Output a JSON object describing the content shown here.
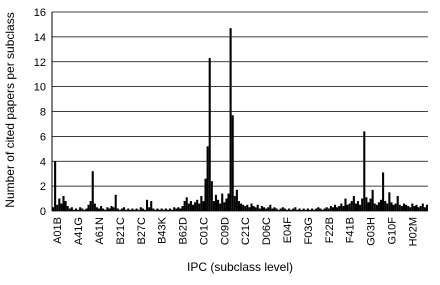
{
  "chart_data": {
    "type": "bar",
    "x_label": "IPC (subclass level)",
    "y_label": "Number of cited papers per subclass",
    "color": "#000000",
    "grid": true,
    "ylim": [
      0,
      16
    ],
    "yticks": [
      0,
      2,
      4,
      6,
      8,
      10,
      12,
      14,
      16
    ],
    "categories": [
      null,
      null,
      "A01B",
      null,
      null,
      null,
      null,
      null,
      null,
      null,
      null,
      null,
      "A41G",
      null,
      null,
      null,
      null,
      null,
      null,
      null,
      null,
      null,
      "A61N",
      null,
      null,
      null,
      null,
      null,
      null,
      null,
      null,
      null,
      "B21C",
      null,
      null,
      null,
      null,
      null,
      null,
      null,
      null,
      null,
      "B27C",
      null,
      null,
      null,
      null,
      null,
      null,
      null,
      null,
      null,
      "B43K",
      null,
      null,
      null,
      null,
      null,
      null,
      null,
      null,
      null,
      "B62D",
      null,
      null,
      null,
      null,
      null,
      null,
      null,
      null,
      null,
      "C01C",
      null,
      null,
      null,
      null,
      null,
      null,
      null,
      null,
      null,
      "C09D",
      null,
      null,
      null,
      null,
      null,
      null,
      null,
      null,
      null,
      "C21C",
      null,
      null,
      null,
      null,
      null,
      null,
      null,
      null,
      null,
      "D06C",
      null,
      null,
      null,
      null,
      null,
      null,
      null,
      null,
      null,
      "E04F",
      null,
      null,
      null,
      null,
      null,
      null,
      null,
      null,
      null,
      "F03G",
      null,
      null,
      null,
      null,
      null,
      null,
      null,
      null,
      null,
      "F22B",
      null,
      null,
      null,
      null,
      null,
      null,
      null,
      null,
      null,
      "F41B",
      null,
      null,
      null,
      null,
      null,
      null,
      null,
      null,
      null,
      "G03H",
      null,
      null,
      null,
      null,
      null,
      null,
      null,
      null,
      null,
      "G10F",
      null,
      null,
      null,
      null,
      null,
      null,
      null,
      null,
      null,
      "H02M",
      null,
      null,
      null,
      null,
      null,
      null,
      null
    ],
    "values": [
      0.3,
      4,
      0.5,
      1,
      0.6,
      1.2,
      0.8,
      0.4,
      0.2,
      0.3,
      0.1,
      0.2,
      0.1,
      0.3,
      0.2,
      0.1,
      0.2,
      0.5,
      0.8,
      3.2,
      0.6,
      0.3,
      0.2,
      0.4,
      0.2,
      0.1,
      0.3,
      0.2,
      0.4,
      0.3,
      1.3,
      0.2,
      0.1,
      0.2,
      0.3,
      0.1,
      0.2,
      0.1,
      0.2,
      0.1,
      0.2,
      0.1,
      0.3,
      0.2,
      0.1,
      0.9,
      0.3,
      0.8,
      0.2,
      0.1,
      0.2,
      0.1,
      0.2,
      0.1,
      0.2,
      0.1,
      0.2,
      0.1,
      0.3,
      0.2,
      0.3,
      0.2,
      0.4,
      0.8,
      1.1,
      0.6,
      0.8,
      0.5,
      0.7,
      0.9,
      0.6,
      1.2,
      0.8,
      2.6,
      5.2,
      12.3,
      2.4,
      0.8,
      1.3,
      0.9,
      0.6,
      1.4,
      0.7,
      1.0,
      1.4,
      14.7,
      7.7,
      1.2,
      1.7,
      0.8,
      0.6,
      0.5,
      0.4,
      0.5,
      0.3,
      0.6,
      0.4,
      0.3,
      0.5,
      0.2,
      0.4,
      0.3,
      0.2,
      0.3,
      0.5,
      0.2,
      0.3,
      0.2,
      0.1,
      0.2,
      0.3,
      0.2,
      0.1,
      0.2,
      0.1,
      0.2,
      0.3,
      0.1,
      0.2,
      0.1,
      0.2,
      0.1,
      0.2,
      0.1,
      0.2,
      0.1,
      0.2,
      0.3,
      0.2,
      0.1,
      0.2,
      0.3,
      0.2,
      0.4,
      0.3,
      0.5,
      0.3,
      0.4,
      0.6,
      0.4,
      1.0,
      0.5,
      0.6,
      0.8,
      1.2,
      0.6,
      0.8,
      0.5,
      1.0,
      6.4,
      1.1,
      0.7,
      1.0,
      1.7,
      0.6,
      0.5,
      0.7,
      0.9,
      3.1,
      0.8,
      0.6,
      1.5,
      0.7,
      0.5,
      0.6,
      1.2,
      0.5,
      0.4,
      0.6,
      0.5,
      0.4,
      0.3,
      0.6,
      0.4,
      0.5,
      0.3,
      0.4,
      0.6,
      0.3,
      0.5
    ]
  }
}
